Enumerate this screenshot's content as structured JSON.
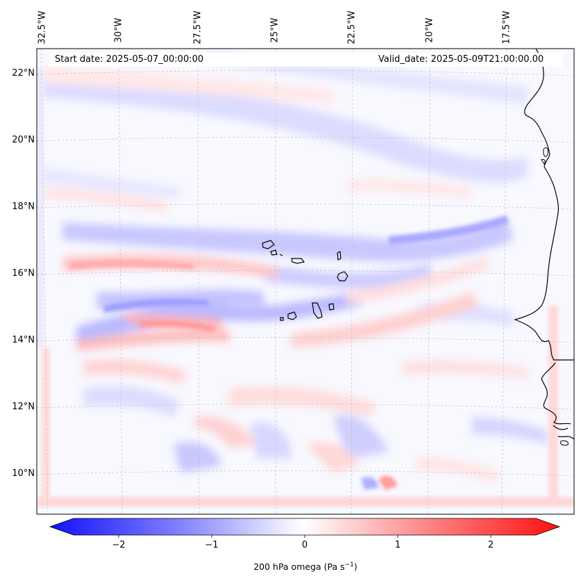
{
  "map": {
    "start_date": "Start date: 2025-05-07_00:00:00",
    "valid_date": "Valid_date: 2025-05-09T21:00:00.00",
    "longitude_labels": [
      "32.5°W",
      "30°W",
      "27.5°W",
      "25°W",
      "22.5°W",
      "20°W",
      "17.5°W"
    ],
    "latitude_labels": [
      "22°N",
      "20°N",
      "18°N",
      "16°N",
      "14°N",
      "12°N",
      "10°N"
    ],
    "coastline_color": "#000000",
    "grid": true
  },
  "colorbar": {
    "ticks": [
      "−2",
      "−1",
      "0",
      "1",
      "2"
    ],
    "tick_values": [
      -2,
      -1,
      0,
      1,
      2
    ],
    "range": [
      -2.6,
      2.6
    ],
    "colormap": "bwr",
    "low_color": "#0000ff",
    "mid_color": "#ffffff",
    "high_color": "#ff0000",
    "label_main": "200 hPa omega (Pa s",
    "label_sup": "−1",
    "label_close": ")"
  }
}
